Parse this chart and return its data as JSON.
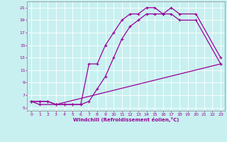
{
  "xlabel": "Windchill (Refroidissement éolien,°C)",
  "bg_color": "#c8f0f0",
  "line_color": "#990099",
  "grid_color": "#ffffff",
  "xlim": [
    -0.5,
    23.5
  ],
  "ylim": [
    4.5,
    22
  ],
  "yticks": [
    5,
    7,
    9,
    11,
    13,
    15,
    17,
    19,
    21
  ],
  "xticks": [
    0,
    1,
    2,
    3,
    4,
    5,
    6,
    7,
    8,
    9,
    10,
    11,
    12,
    13,
    14,
    15,
    16,
    17,
    18,
    19,
    20,
    21,
    22,
    23
  ],
  "line1_x": [
    0,
    1,
    2,
    3,
    4,
    5,
    6,
    7,
    8,
    9,
    10,
    11,
    12,
    13,
    14,
    15,
    16,
    17,
    18,
    20,
    23
  ],
  "line1_y": [
    6,
    6,
    6,
    5.5,
    5.5,
    5.5,
    5.5,
    12,
    12,
    15,
    17,
    19,
    20,
    20,
    21,
    21,
    20,
    21,
    20,
    20,
    13
  ],
  "line2_x": [
    0,
    1,
    2,
    3,
    4,
    5,
    6,
    7,
    8,
    9,
    10,
    11,
    12,
    13,
    14,
    15,
    16,
    17,
    18,
    20,
    23
  ],
  "line2_y": [
    6,
    6,
    6,
    5.5,
    5.5,
    5.5,
    5.5,
    6,
    8,
    10,
    13,
    16,
    18,
    19,
    20,
    20,
    20,
    20,
    19,
    19,
    12
  ],
  "line3_x": [
    0,
    1,
    3,
    23
  ],
  "line3_y": [
    6,
    5.5,
    5.5,
    12
  ]
}
